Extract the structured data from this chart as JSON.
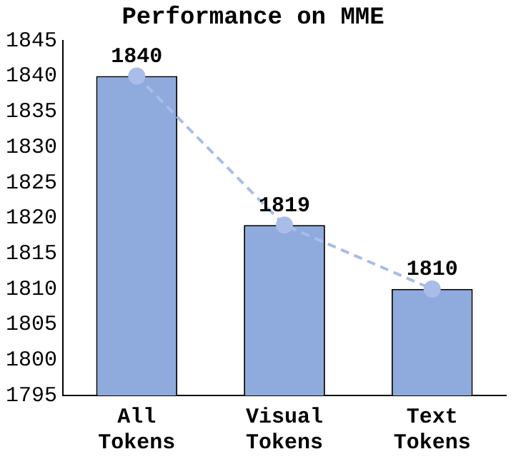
{
  "chart_data": {
    "type": "bar",
    "title": "Performance on MME",
    "categories": [
      "All Tokens",
      "Visual Tokens",
      "Text Tokens"
    ],
    "series": [
      {
        "color": "#8faadc",
        "values": [
          1840,
          1819,
          1810
        ],
        "value_labels": [
          "1840",
          "1819",
          "1810"
        ]
      },
      {
        "type": "line",
        "color": "#a9bde8",
        "values": [
          1840,
          1819,
          1810
        ],
        "line_style": "dashed",
        "marker": "circle"
      }
    ],
    "ylim": [
      1795,
      1845
    ],
    "yticks": [
      1795,
      1800,
      1805,
      1810,
      1815,
      1820,
      1825,
      1830,
      1835,
      1840,
      1845
    ],
    "grid": false,
    "legend": false
  }
}
